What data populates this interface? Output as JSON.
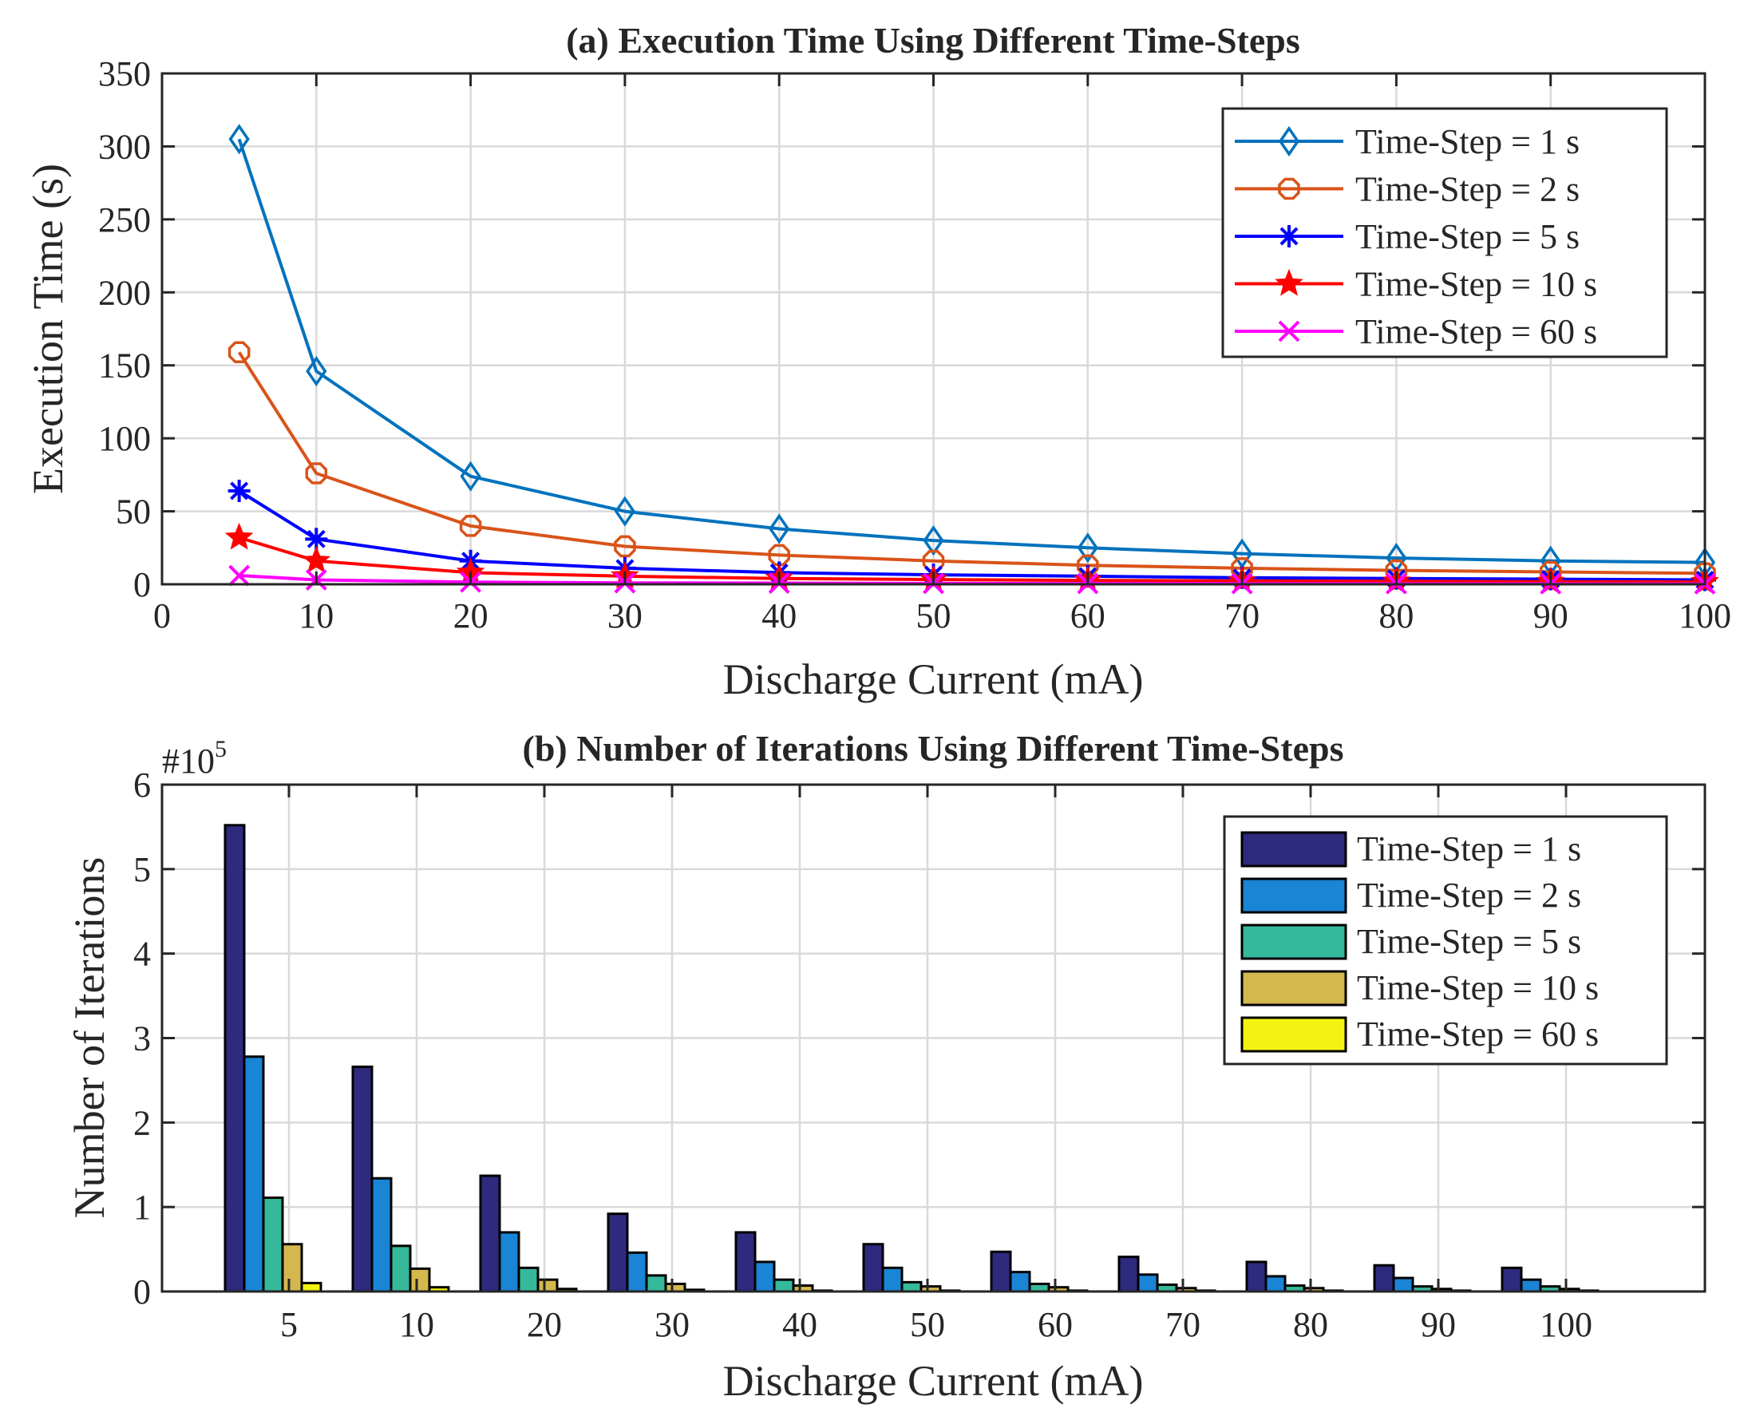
{
  "chart_data": [
    {
      "type": "line",
      "title": "(a) Execution Time Using Different Time-Steps",
      "xlabel": "Discharge Current (mA)",
      "ylabel": "Execution Time (s)",
      "xlim": [
        0,
        100
      ],
      "ylim": [
        0,
        350
      ],
      "xticks": [
        0,
        10,
        20,
        30,
        40,
        50,
        60,
        70,
        80,
        90,
        100
      ],
      "yticks": [
        0,
        50,
        100,
        150,
        200,
        250,
        300,
        350
      ],
      "grid": true,
      "legend_position": "top-right",
      "x": [
        5,
        10,
        20,
        30,
        40,
        50,
        60,
        70,
        80,
        90,
        100
      ],
      "series": [
        {
          "name": "Time-Step = 1 s",
          "color": "#0072BD",
          "marker": "diamond",
          "values": [
            305,
            146,
            74,
            50,
            38,
            30,
            25,
            21,
            18,
            16,
            15
          ]
        },
        {
          "name": "Time-Step = 2 s",
          "color": "#D95319",
          "marker": "circle",
          "values": [
            159,
            76,
            40,
            26,
            20,
            16,
            13,
            11,
            9.5,
            8.5,
            7.5
          ]
        },
        {
          "name": "Time-Step = 5 s",
          "color": "#0000FF",
          "marker": "asterisk",
          "values": [
            64,
            31,
            16,
            11,
            8,
            6.5,
            5.5,
            4.5,
            4,
            3.5,
            3
          ]
        },
        {
          "name": "Time-Step = 10 s",
          "color": "#FF0000",
          "marker": "star",
          "values": [
            32,
            16,
            8,
            5.5,
            4,
            3.2,
            2.7,
            2.3,
            2,
            1.8,
            1.6
          ]
        },
        {
          "name": "Time-Step = 60 s",
          "color": "#FF00FF",
          "marker": "x",
          "values": [
            6,
            3,
            1.5,
            1,
            0.8,
            0.6,
            0.5,
            0.45,
            0.4,
            0.35,
            0.3
          ]
        }
      ]
    },
    {
      "type": "bar",
      "title": "(b) Number of Iterations Using Different Time-Steps",
      "xlabel": "Discharge Current (mA)",
      "ylabel": "Number of Iterations",
      "exponent_label": "#10",
      "exponent_power": "5",
      "ylim": [
        0,
        6
      ],
      "yticks": [
        0,
        1,
        2,
        3,
        4,
        5,
        6
      ],
      "grid": true,
      "legend_position": "top-right",
      "categories": [
        "5",
        "10",
        "20",
        "30",
        "40",
        "50",
        "60",
        "70",
        "80",
        "90",
        "100"
      ],
      "series": [
        {
          "name": "Time-Step = 1 s",
          "color": "#2E2A7E",
          "values": [
            5.52,
            2.66,
            1.37,
            0.92,
            0.7,
            0.56,
            0.47,
            0.41,
            0.35,
            0.31,
            0.28
          ]
        },
        {
          "name": "Time-Step = 2 s",
          "color": "#1A84D5",
          "values": [
            2.78,
            1.34,
            0.7,
            0.46,
            0.35,
            0.28,
            0.23,
            0.2,
            0.18,
            0.16,
            0.14
          ]
        },
        {
          "name": "Time-Step = 5 s",
          "color": "#35B99A",
          "values": [
            1.11,
            0.54,
            0.28,
            0.19,
            0.14,
            0.11,
            0.09,
            0.08,
            0.07,
            0.06,
            0.06
          ]
        },
        {
          "name": "Time-Step = 10 s",
          "color": "#D4B84E",
          "values": [
            0.56,
            0.27,
            0.14,
            0.09,
            0.07,
            0.06,
            0.05,
            0.04,
            0.04,
            0.03,
            0.03
          ]
        },
        {
          "name": "Time-Step = 60 s",
          "color": "#F3F311",
          "values": [
            0.1,
            0.05,
            0.03,
            0.02,
            0.01,
            0.01,
            0.01,
            0.01,
            0.01,
            0.01,
            0.01
          ]
        }
      ]
    }
  ]
}
